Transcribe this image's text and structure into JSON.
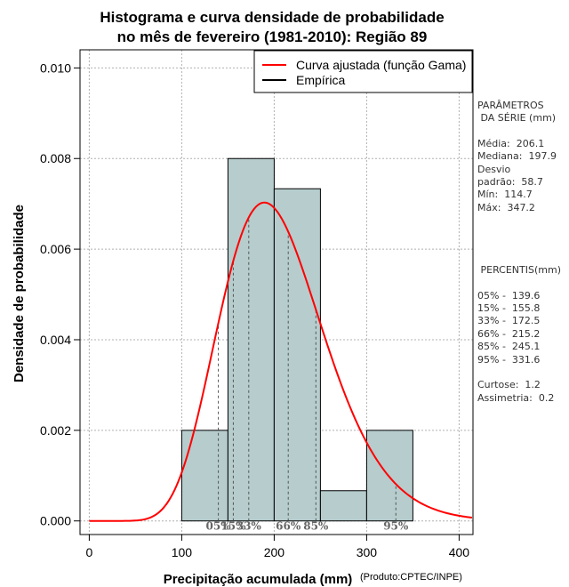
{
  "chart_data": {
    "type": "bar",
    "title": [
      "Histograma e curva densidade de probabilidade",
      "no mês de fevereiro (1981-2010): Região 89"
    ],
    "xlabel": "Precipitação acumulada (mm)",
    "ylabel": "Densidade de probabilidade",
    "credit": "(Produto:CPTEC/INPE)",
    "xlim": [
      -10,
      415
    ],
    "ylim": [
      -0.0003,
      0.0104
    ],
    "xticks": [
      0,
      100,
      200,
      300,
      400
    ],
    "xtick_labels": [
      "0",
      "100",
      "200",
      "300",
      "400"
    ],
    "yticks": [
      0,
      0.002,
      0.004,
      0.006,
      0.008,
      0.01
    ],
    "ytick_labels": [
      "0.000",
      "0.002",
      "0.004",
      "0.006",
      "0.008",
      "0.010"
    ],
    "grid": true,
    "bins": [
      {
        "start": 100,
        "end": 150,
        "density": 0.002
      },
      {
        "start": 150,
        "end": 200,
        "density": 0.008
      },
      {
        "start": 200,
        "end": 250,
        "density": 0.007333
      },
      {
        "start": 250,
        "end": 300,
        "density": 0.000667
      },
      {
        "start": 300,
        "end": 350,
        "density": 0.002
      }
    ],
    "gamma_fit": {
      "shape": 12.3,
      "scale": 16.76,
      "color": "#ff0000"
    },
    "bar_color": "#b6cccd",
    "percentile_lines": [
      {
        "label": "05%",
        "value": 139.6
      },
      {
        "label": "15%",
        "value": 155.8
      },
      {
        "label": "33%",
        "value": 172.5
      },
      {
        "label": "66%",
        "value": 215.2
      },
      {
        "label": "85%",
        "value": 245.1
      },
      {
        "label": "95%",
        "value": 331.6
      }
    ],
    "legend": {
      "position": "top-right",
      "entries": [
        {
          "label": "Curva ajustada (função Gama)",
          "color": "#ff0000"
        },
        {
          "label": "Empírica",
          "color": "#000000"
        }
      ]
    }
  },
  "stats_panel": {
    "parametros_title_1": "PARÂMETROS",
    "parametros_title_2": " DA SÉRIE (mm)",
    "media": "Média:  206.1",
    "mediana": "Mediana:  197.9",
    "desvio_1": "Desvio",
    "desvio_2": "padrão:  58.7",
    "min": "Mín:  114.7",
    "max": "Máx:  347.2",
    "percentis_title": " PERCENTIS(mm)",
    "p05": "05% -  139.6",
    "p15": "15% -  155.8",
    "p33": "33% -  172.5",
    "p66": "66% -  215.2",
    "p85": "85% -  245.1",
    "p95": "95% -  331.6",
    "curtose": "Curtose:  1.2",
    "assimetria": "Assimetria:  0.2"
  }
}
